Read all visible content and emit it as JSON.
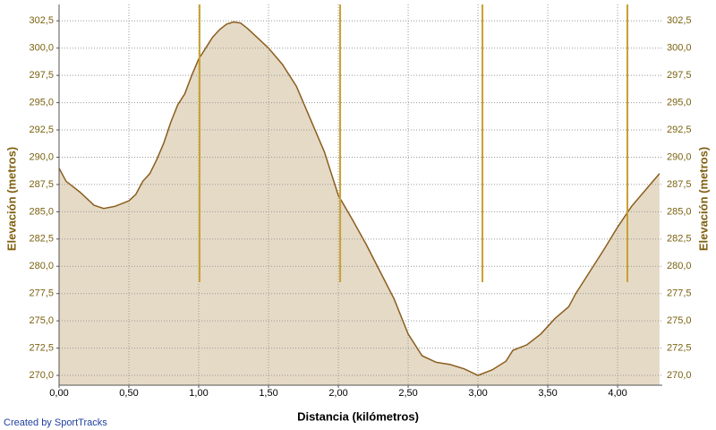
{
  "chart_data": {
    "type": "area",
    "xlabel": "Distancia (kilómetros)",
    "ylabel": "Elevación (metros)",
    "y2label": "Elevación (metros)",
    "footer": "Created by SportTracks",
    "x": [
      0,
      0.05,
      0.15,
      0.25,
      0.32,
      0.4,
      0.5,
      0.55,
      0.6,
      0.65,
      0.7,
      0.75,
      0.8,
      0.85,
      0.9,
      0.95,
      1.0,
      1.05,
      1.1,
      1.15,
      1.2,
      1.25,
      1.3,
      1.35,
      1.4,
      1.5,
      1.6,
      1.7,
      1.8,
      1.9,
      2.0,
      2.1,
      2.2,
      2.3,
      2.4,
      2.5,
      2.6,
      2.7,
      2.8,
      2.9,
      3.0,
      3.1,
      3.2,
      3.25,
      3.35,
      3.45,
      3.55,
      3.65,
      3.7,
      3.8,
      3.9,
      4.0,
      4.1,
      4.2,
      4.3
    ],
    "series": [
      {
        "name": "Elevación",
        "color": "#8b5e1e",
        "fill": "#e5dac6",
        "values": [
          289,
          287.8,
          286.8,
          285.6,
          285.3,
          285.5,
          286.0,
          286.6,
          287.8,
          288.5,
          289.8,
          291.3,
          293.2,
          294.8,
          295.8,
          297.5,
          299.0,
          300.0,
          301.0,
          301.7,
          302.2,
          302.4,
          302.3,
          301.8,
          301.2,
          300.0,
          298.5,
          296.5,
          293.5,
          290.5,
          286.5,
          284.3,
          282.0,
          279.5,
          277.0,
          273.8,
          271.8,
          271.2,
          271.0,
          270.6,
          270.0,
          270.5,
          271.3,
          272.3,
          272.8,
          273.8,
          275.2,
          276.3,
          277.5,
          279.5,
          281.5,
          283.6,
          285.5,
          287.0,
          288.5
        ]
      }
    ],
    "markers": [
      1.006,
      2.013,
      3.032,
      4.07
    ],
    "marker_color": "#c9a032",
    "xlim": [
      0,
      4.32
    ],
    "ylim": [
      269.1,
      304
    ],
    "xticks": [
      {
        "value": 0,
        "label": "0,00"
      },
      {
        "value": 0.5,
        "label": "0,50"
      },
      {
        "value": 1,
        "label": "1,00"
      },
      {
        "value": 1.5,
        "label": "1,50"
      },
      {
        "value": 2,
        "label": "2,00"
      },
      {
        "value": 2.5,
        "label": "2,50"
      },
      {
        "value": 3,
        "label": "3,00"
      },
      {
        "value": 3.5,
        "label": "3,50"
      },
      {
        "value": 4,
        "label": "4,00"
      }
    ],
    "yticks": [
      {
        "value": 270,
        "label": "270,0"
      },
      {
        "value": 272.5,
        "label": "272,5"
      },
      {
        "value": 275,
        "label": "275,0"
      },
      {
        "value": 277.5,
        "label": "277,5"
      },
      {
        "value": 280,
        "label": "280,0"
      },
      {
        "value": 282.5,
        "label": "282,5"
      },
      {
        "value": 285,
        "label": "285,0"
      },
      {
        "value": 287.5,
        "label": "287,5"
      },
      {
        "value": 290,
        "label": "290,0"
      },
      {
        "value": 292.5,
        "label": "292,5"
      },
      {
        "value": 295,
        "label": "295,0"
      },
      {
        "value": 297.5,
        "label": "297,5"
      },
      {
        "value": 300,
        "label": "300,0"
      },
      {
        "value": 302.5,
        "label": "302,5"
      }
    ],
    "grid": true
  }
}
